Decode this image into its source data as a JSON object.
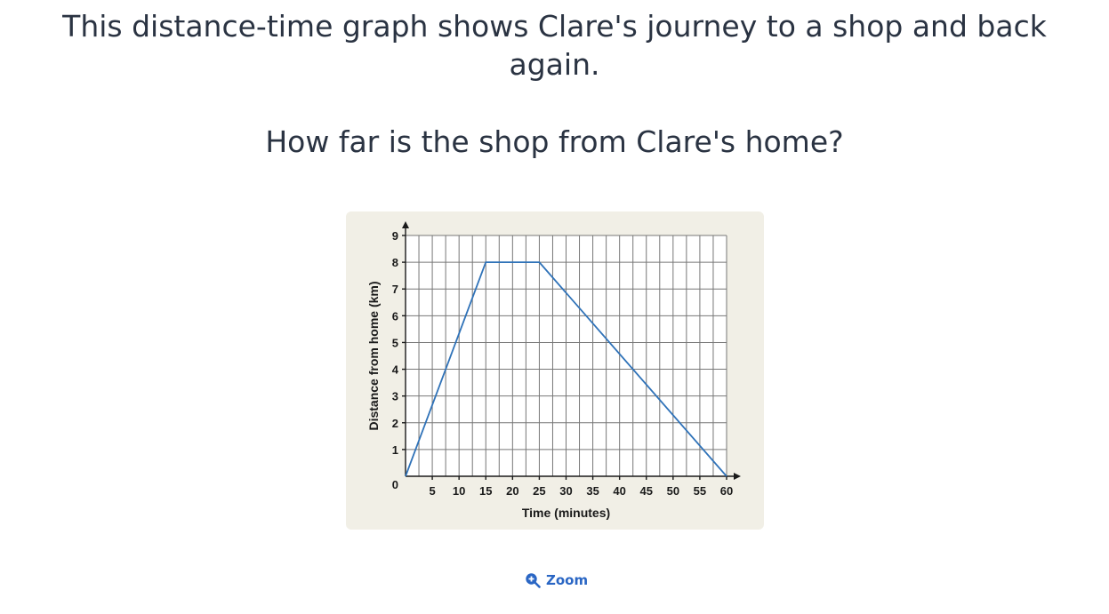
{
  "question": {
    "text": "This distance-time graph shows Clare's journey to a shop and back again.",
    "prompt": "How far is the shop from Clare's home?"
  },
  "chart_data": {
    "type": "line",
    "xlabel": "Time (minutes)",
    "ylabel": "Distance from home (km)",
    "xlim": [
      0,
      60
    ],
    "ylim": [
      0,
      9
    ],
    "x_ticks": [
      0,
      5,
      10,
      15,
      20,
      25,
      30,
      35,
      40,
      45,
      50,
      55,
      60
    ],
    "y_ticks": [
      0,
      1,
      2,
      3,
      4,
      5,
      6,
      7,
      8,
      9
    ],
    "grid": true,
    "series": [
      {
        "x": [
          0,
          15,
          25,
          60
        ],
        "y": [
          0,
          8,
          8,
          0
        ],
        "color": "#2f72b8"
      }
    ]
  },
  "zoom": {
    "label": "Zoom",
    "icon": "zoom-in-icon",
    "color": "#2a66c4"
  }
}
